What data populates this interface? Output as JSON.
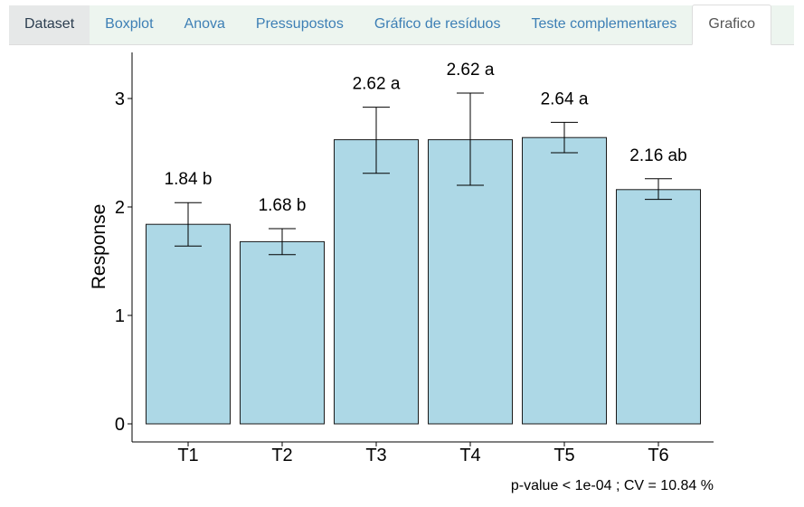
{
  "tabs": [
    {
      "label": "Dataset",
      "state": "first"
    },
    {
      "label": "Boxplot",
      "state": "normal"
    },
    {
      "label": "Anova",
      "state": "normal"
    },
    {
      "label": "Pressupostos",
      "state": "normal"
    },
    {
      "label": "Gráfico de resíduos",
      "state": "normal"
    },
    {
      "label": "Teste complementares",
      "state": "normal"
    },
    {
      "label": "Grafico",
      "state": "active"
    }
  ],
  "colors": {
    "bar_fill": "#add8e6",
    "bar_stroke": "#1a1a1a",
    "link": "#3d7fb5",
    "tab_bg": "#edf5ef"
  },
  "chart_data": {
    "type": "bar",
    "categories": [
      "T1",
      "T2",
      "T3",
      "T4",
      "T5",
      "T6"
    ],
    "values": [
      1.84,
      1.68,
      2.62,
      2.62,
      2.64,
      2.16
    ],
    "error_low": [
      1.64,
      1.56,
      2.31,
      2.2,
      2.5,
      2.07
    ],
    "error_high": [
      2.04,
      1.8,
      2.92,
      3.05,
      2.78,
      2.26
    ],
    "bar_labels": [
      "1.84 b",
      "1.68 b",
      "2.62 a",
      "2.62 a",
      "2.64 a",
      "2.16 ab"
    ],
    "ylabel": "Response",
    "xlabel": "",
    "ylim": [
      0,
      3.4
    ],
    "yticks": [
      0,
      1,
      2,
      3
    ],
    "grid": false,
    "caption": "p-value < 1e-04 ; CV =  10.84 %"
  }
}
